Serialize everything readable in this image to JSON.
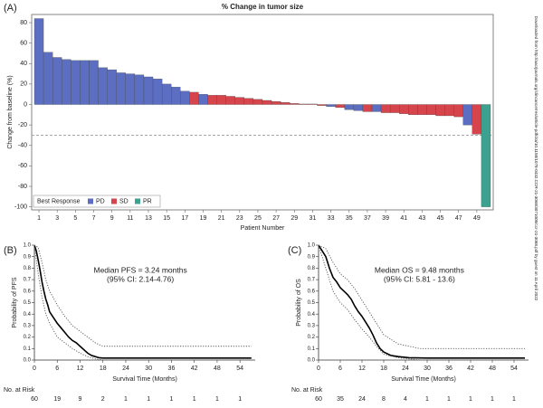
{
  "side_note": "Downloaded from http://aacrjournals.org/clincancerres/article-pdf/doi/10.1158/1078-0432.CCR-21-3068/3071008/ccr-21-3068.pdf by guest on 11 April 2022",
  "chart_data": [
    {
      "type": "bar",
      "panel_label": "(A)",
      "title": "% Change in tumor size",
      "xlabel": "Patient Number",
      "ylabel": "Change from baseline (%)",
      "legend_title": "Best Response",
      "legend": "lower left",
      "ref_line": -30,
      "categories": [
        1,
        null,
        3,
        null,
        5,
        null,
        7,
        null,
        9,
        null,
        11,
        null,
        13,
        null,
        15,
        null,
        17,
        null,
        19,
        null,
        21,
        null,
        23,
        null,
        25,
        null,
        27,
        null,
        29,
        null,
        31,
        null,
        33,
        null,
        35,
        null,
        37,
        null,
        39,
        null,
        41,
        null,
        43,
        null,
        45,
        null,
        47,
        null,
        49,
        null
      ],
      "ylim": [
        -103,
        88
      ],
      "yticks": [
        -100,
        -80,
        -60,
        -40,
        -20,
        0,
        20,
        40,
        60,
        80
      ],
      "series": [
        {
          "name": "PD",
          "color": "#5b6ec1",
          "values": [
            84,
            51,
            46,
            44,
            43,
            43,
            43,
            36,
            34,
            31,
            30,
            29,
            27,
            25,
            20,
            17,
            13,
            null,
            10,
            null,
            null,
            null,
            null,
            null,
            null,
            null,
            null,
            null,
            null,
            null,
            null,
            null,
            -2,
            null,
            -5,
            -6,
            null,
            -7,
            null,
            null,
            null,
            null,
            null,
            null,
            null,
            null,
            null,
            -20,
            null,
            null
          ]
        },
        {
          "name": "SD",
          "color": "#d6444c",
          "values": [
            null,
            null,
            null,
            null,
            null,
            null,
            null,
            null,
            null,
            null,
            null,
            null,
            null,
            null,
            null,
            null,
            null,
            12,
            null,
            9,
            9,
            8,
            7,
            6,
            5,
            4,
            3,
            2,
            1,
            0.5,
            0.5,
            -1,
            null,
            -3,
            null,
            null,
            -7,
            null,
            -8,
            -8,
            -9,
            -10,
            -10,
            -10,
            -11,
            -11,
            -12,
            null,
            -29,
            null
          ]
        },
        {
          "name": "PR",
          "color": "#3ca28f",
          "values": [
            null,
            null,
            null,
            null,
            null,
            null,
            null,
            null,
            null,
            null,
            null,
            null,
            null,
            null,
            null,
            null,
            null,
            null,
            null,
            null,
            null,
            null,
            null,
            null,
            null,
            null,
            null,
            null,
            null,
            null,
            null,
            null,
            null,
            null,
            null,
            null,
            null,
            null,
            null,
            null,
            null,
            null,
            null,
            null,
            null,
            null,
            null,
            null,
            null,
            -100
          ]
        }
      ]
    },
    {
      "type": "line",
      "panel_label": "(B)",
      "xlabel": "Survival Time (Months)",
      "ylabel": "Probability of PFS",
      "annotations": [
        "Median PFS = 3.24 months",
        "(95% CI: 2.14-4.76)"
      ],
      "xlim": [
        0,
        58
      ],
      "xticks": [
        0,
        6,
        12,
        18,
        24,
        30,
        36,
        42,
        48,
        54
      ],
      "ylim": [
        0,
        1
      ],
      "yticks": [
        {
          "value": 0,
          "label": "0.0"
        },
        {
          "value": 0.1,
          "label": "0.1"
        },
        {
          "value": 0.2,
          "label": "0.2"
        },
        {
          "value": 0.3,
          "label": "0.3"
        },
        {
          "value": 0.4,
          "label": "0.4"
        },
        {
          "value": 0.5,
          "label": "0.5"
        },
        {
          "value": 0.6,
          "label": "0.6"
        },
        {
          "value": 0.7,
          "label": "0.7"
        },
        {
          "value": 0.8,
          "label": "0.8"
        },
        {
          "value": 0.9,
          "label": "0.9"
        },
        {
          "value": 1,
          "label": "1.0"
        }
      ],
      "risk_table": {
        "title": "No. at Risk",
        "values": [
          60,
          19,
          9,
          2,
          1,
          1,
          1,
          1,
          1,
          1
        ]
      },
      "series": [
        {
          "color": "#000000",
          "dash": "solid",
          "x": [
            0,
            0.5,
            1,
            1.5,
            2,
            2.5,
            3,
            3.5,
            4,
            5,
            6,
            7,
            8,
            9,
            10,
            11,
            12,
            13,
            14,
            15,
            16,
            17,
            18,
            57
          ],
          "values": [
            1,
            0.95,
            0.87,
            0.78,
            0.68,
            0.6,
            0.53,
            0.48,
            0.42,
            0.37,
            0.32,
            0.28,
            0.24,
            0.2,
            0.17,
            0.15,
            0.12,
            0.09,
            0.06,
            0.04,
            0.03,
            0.02,
            0.017,
            0.017
          ]
        },
        {
          "color": "#555555",
          "dash": "dotted",
          "x": [
            0,
            1,
            2,
            3,
            4,
            6,
            8,
            10,
            12,
            14,
            16,
            18,
            57
          ],
          "values": [
            1,
            0.98,
            0.85,
            0.7,
            0.6,
            0.48,
            0.38,
            0.3,
            0.25,
            0.2,
            0.15,
            0.12,
            0.12
          ]
        },
        {
          "color": "#555555",
          "dash": "dotted",
          "x": [
            0,
            1,
            2,
            3,
            4,
            6,
            8,
            10,
            12,
            14,
            16,
            18
          ],
          "values": [
            1,
            0.75,
            0.55,
            0.4,
            0.32,
            0.2,
            0.15,
            0.1,
            0.06,
            0.03,
            0.01,
            0
          ]
        }
      ]
    },
    {
      "type": "line",
      "panel_label": "(C)",
      "xlabel": "Survival Time (Months)",
      "ylabel": "Probability of OS",
      "annotations": [
        "Median OS = 9.48 months",
        "(95% CI: 5.81 - 13.6)"
      ],
      "xlim": [
        0,
        58
      ],
      "xticks": [
        0,
        6,
        12,
        18,
        24,
        30,
        36,
        42,
        48,
        54
      ],
      "ylim": [
        0,
        1
      ],
      "yticks": [
        {
          "value": 0,
          "label": "0.0"
        },
        {
          "value": 0.1,
          "label": "0.1"
        },
        {
          "value": 0.2,
          "label": "0.2"
        },
        {
          "value": 0.3,
          "label": "0.3"
        },
        {
          "value": 0.4,
          "label": "0.4"
        },
        {
          "value": 0.5,
          "label": "0.5"
        },
        {
          "value": 0.6,
          "label": "0.6"
        },
        {
          "value": 0.7,
          "label": "0.7"
        },
        {
          "value": 0.8,
          "label": "0.8"
        },
        {
          "value": 0.9,
          "label": "0.9"
        },
        {
          "value": 1,
          "label": "1.0"
        }
      ],
      "risk_table": {
        "title": "No. at Risk",
        "values": [
          60,
          35,
          24,
          8,
          4,
          1,
          1,
          1,
          1,
          1
        ]
      },
      "series": [
        {
          "color": "#000000",
          "dash": "solid",
          "x": [
            0,
            1,
            2,
            3,
            4,
            5,
            6,
            7,
            8,
            9,
            10,
            11,
            12,
            13,
            14,
            15,
            16,
            17,
            18,
            20,
            22,
            25,
            30,
            57
          ],
          "values": [
            1,
            0.95,
            0.9,
            0.8,
            0.72,
            0.68,
            0.63,
            0.6,
            0.57,
            0.53,
            0.47,
            0.42,
            0.38,
            0.33,
            0.28,
            0.22,
            0.15,
            0.1,
            0.07,
            0.04,
            0.03,
            0.02,
            0.017,
            0.017
          ]
        },
        {
          "color": "#555555",
          "dash": "dotted",
          "x": [
            0,
            2,
            4,
            6,
            8,
            10,
            12,
            14,
            16,
            18,
            22,
            28,
            57
          ],
          "values": [
            1,
            0.97,
            0.85,
            0.75,
            0.7,
            0.62,
            0.52,
            0.42,
            0.32,
            0.22,
            0.14,
            0.1,
            0.1
          ]
        },
        {
          "color": "#555555",
          "dash": "dotted",
          "x": [
            0,
            2,
            4,
            6,
            8,
            10,
            12,
            14,
            16,
            18,
            22,
            28
          ],
          "values": [
            1,
            0.8,
            0.6,
            0.5,
            0.44,
            0.35,
            0.27,
            0.2,
            0.12,
            0.05,
            0.02,
            0
          ]
        }
      ]
    }
  ]
}
